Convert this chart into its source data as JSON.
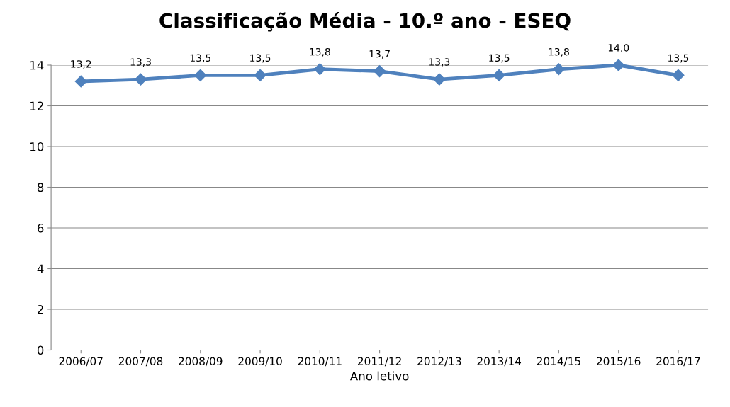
{
  "chart_data": {
    "type": "line",
    "title": "Classificação Média - 10.º ano - ESEQ",
    "xlabel": "Ano letivo",
    "categories": [
      "2006/07",
      "2007/08",
      "2008/09",
      "2009/10",
      "2010/11",
      "2011/12",
      "2012/13",
      "2013/14",
      "2014/15",
      "2015/16",
      "2016/17"
    ],
    "series": [
      {
        "color": "#4f81bd",
        "values": [
          13.2,
          13.3,
          13.5,
          13.5,
          13.8,
          13.7,
          13.3,
          13.5,
          13.8,
          14.0,
          13.5
        ],
        "value_labels": [
          "13,2",
          "13,3",
          "13,5",
          "13,5",
          "13,8",
          "13,7",
          "13,3",
          "13,5",
          "13,8",
          "14,0",
          "13,5"
        ]
      }
    ],
    "ylim": [
      0,
      14
    ],
    "yticks": [
      0,
      2,
      4,
      6,
      8,
      10,
      12,
      14
    ],
    "grid": "y",
    "marker": "diamond",
    "line_style": "solid"
  }
}
